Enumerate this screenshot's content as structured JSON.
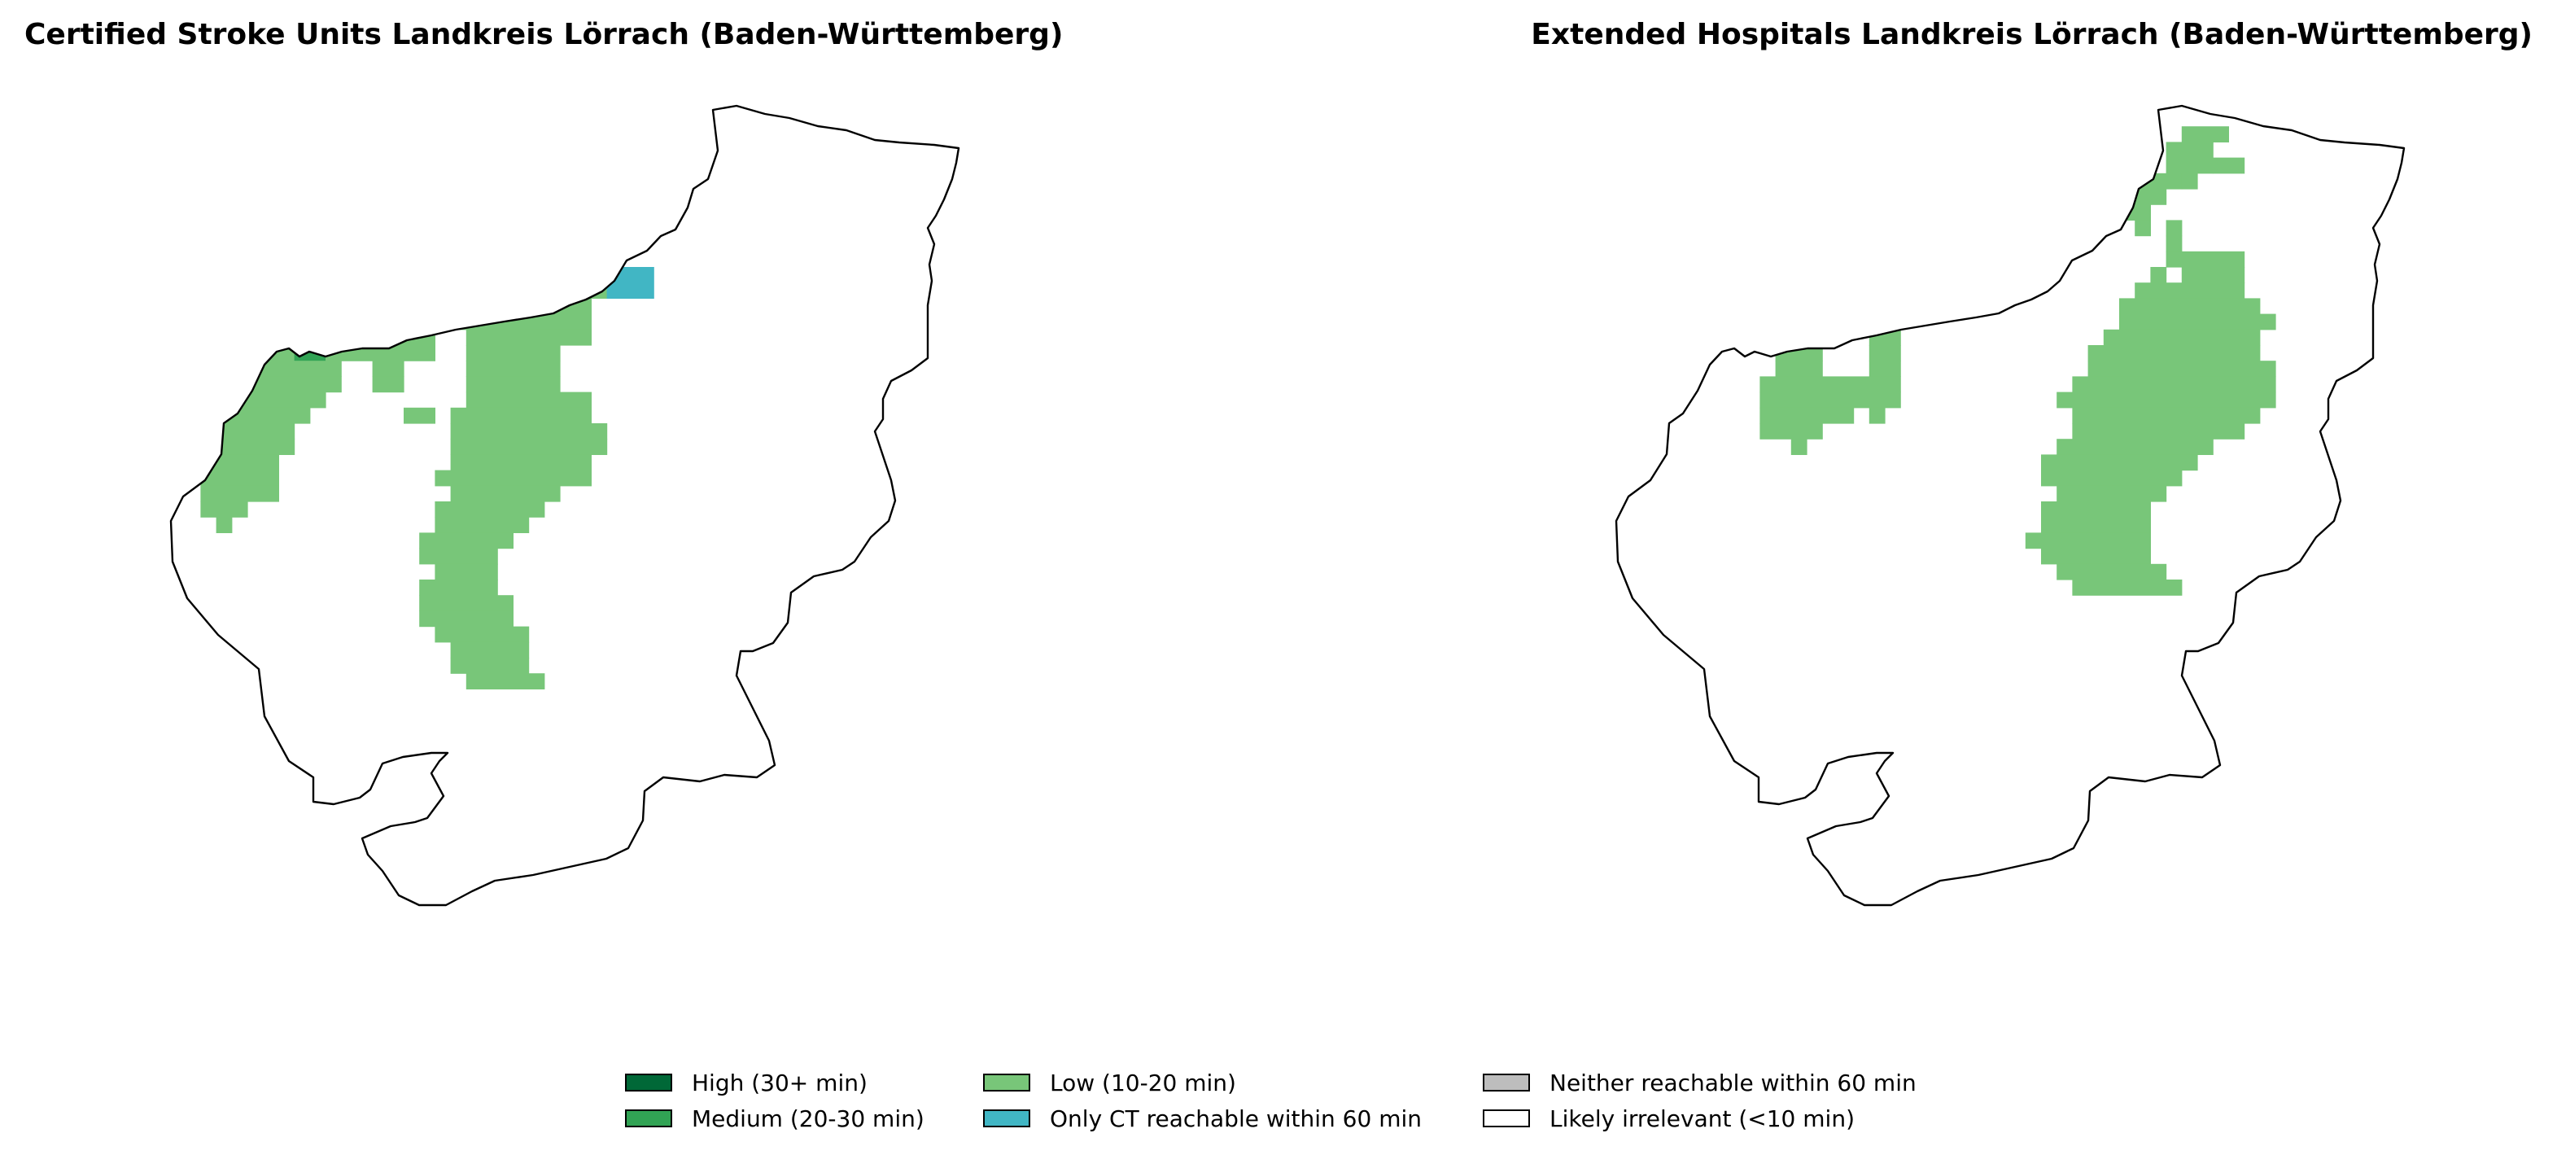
{
  "left_map": {
    "title": "Certified Stroke Units Landkreis Lörrach (Baden-Württemberg)"
  },
  "right_map": {
    "title": "Extended Hospitals Landkreis Lörrach (Baden-Württemberg)"
  },
  "legend": {
    "items": [
      {
        "label": "High (30+ min)",
        "color": "#006837"
      },
      {
        "label": "Low (10-20 min)",
        "color": "#78c679"
      },
      {
        "label": "Neither reachable within 60 min",
        "color": "#bdbdbd"
      },
      {
        "label": "Medium (20-30 min)",
        "color": "#31a354"
      },
      {
        "label": "Only CT reachable within 60 min",
        "color": "#41b6c4"
      },
      {
        "label": "Likely irrelevant (<10 min)",
        "color": "#ffffff"
      }
    ]
  },
  "colors": {
    "high": "#006837",
    "medium": "#31a354",
    "low": "#78c679",
    "ct_only": "#41b6c4",
    "neither": "#bdbdbd",
    "irrelevant": "#ffffff",
    "boundary": "#000000"
  }
}
